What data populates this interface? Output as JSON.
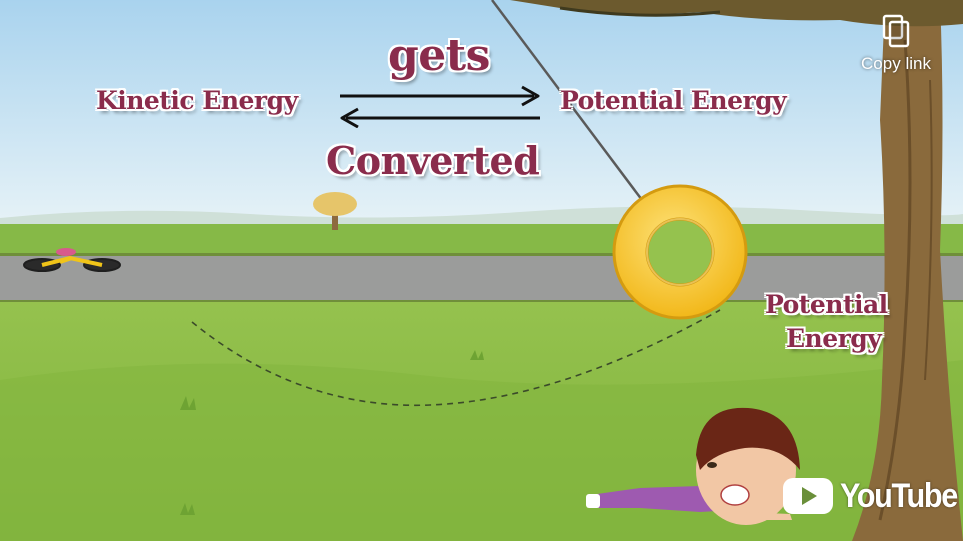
{
  "video": {
    "caption_top": "gets",
    "left_term": "Kinetic Energy",
    "right_term": "Potential Energy",
    "caption_bottom": "Converted",
    "side_label_line1": "Potential",
    "side_label_line2": "Energy"
  },
  "overlay": {
    "copy_link_label": "Copy link",
    "copy_icon": "copy-icon",
    "brand_wordmark": "YouTube",
    "brand_icon": "youtube-play-icon"
  },
  "colors": {
    "caption_text": "#8a2c4c",
    "sky": "#bcdff2",
    "grass": "#8fc04a",
    "road": "#9a9a9a",
    "tire": "#f6c820",
    "youtube_red": "#ffffff"
  }
}
